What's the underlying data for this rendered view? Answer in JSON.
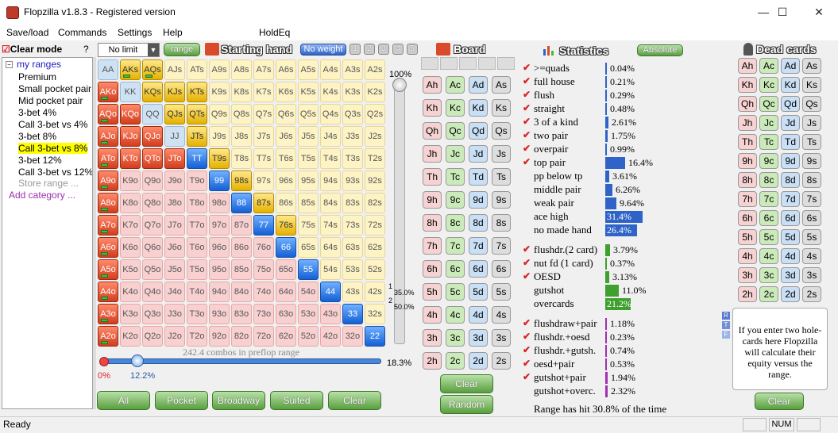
{
  "app": {
    "title": "Flopzilla v1.8.3 - Registered version",
    "min": "—",
    "max": "☐",
    "close": "✕"
  },
  "menu": [
    "Save/load",
    "Commands",
    "Settings",
    "Help",
    "HoldEq"
  ],
  "tree": {
    "clear_mode": "Clear mode",
    "help": "?",
    "root": "my ranges",
    "items": [
      "Premium",
      "Small pocket pair",
      "Mid pocket pair",
      "3-bet 4%",
      "Call 3-bet vs 4%",
      "3-bet 8%",
      "Call 3-bet vs 8%",
      "3-bet 12%",
      "Call 3-bet vs 12%"
    ],
    "selected_index": 6,
    "store": "Store range ...",
    "add": "Add category ..."
  },
  "range_bar": {
    "limit": "No limit",
    "range_btn": "range",
    "title": "Starting hand",
    "weight": "No weight",
    "nums": [
      "1",
      "2",
      "3",
      "4",
      "5"
    ]
  },
  "grid": {
    "ranks": [
      "A",
      "K",
      "Q",
      "J",
      "T",
      "9",
      "8",
      "7",
      "6",
      "5",
      "4",
      "3",
      "2"
    ],
    "selected": [
      "AKs",
      "AQs",
      "KQs",
      "KJs",
      "KTs",
      "QJs",
      "QTs",
      "JTs",
      "T9s",
      "98s",
      "87s",
      "76s",
      "AKo",
      "AQo",
      "KQo",
      "AJo",
      "KJo",
      "QJo",
      "ATo",
      "KTo",
      "QTo",
      "JTo",
      "A9o",
      "A8o",
      "A7o",
      "A6o",
      "A5o",
      "A4o",
      "A3o",
      "A2o",
      "TT",
      "99",
      "88",
      "77",
      "66",
      "55",
      "44",
      "33",
      "22"
    ],
    "marked": [
      "AKs",
      "AQs",
      "AKo",
      "AQo",
      "AJo",
      "ATo",
      "A9o",
      "A8o",
      "A7o",
      "A6o",
      "A5o",
      "A4o",
      "A3o",
      "A2o"
    ],
    "combos": "242.4 combos in preflop range"
  },
  "vslider": {
    "top": "100%",
    "l1": "1",
    "v1": "35.0%",
    "l2": "2",
    "v2": "50.0%",
    "fill": 1.0
  },
  "hslider": {
    "left": "0%",
    "mid": "12.2%",
    "right": "18.3%",
    "fill": 0.122
  },
  "bottom_buttons": [
    "All",
    "Pocket",
    "Broadway",
    "Suited",
    "Clear"
  ],
  "board": {
    "title": "Board",
    "ranks": [
      "A",
      "K",
      "Q",
      "J",
      "T",
      "9",
      "8",
      "7",
      "6",
      "5",
      "4",
      "3",
      "2"
    ],
    "suits": [
      "h",
      "c",
      "d",
      "s"
    ],
    "clear": "Clear",
    "random": "Random"
  },
  "stats": {
    "title": "Statistics",
    "absolute": "Absolute",
    "groups": [
      [
        {
          "l": "&gt;=quads",
          "v": "0.04%",
          "p": 0.04
        },
        {
          "l": "full house",
          "v": "0.21%",
          "p": 0.21
        },
        {
          "l": "flush",
          "v": "0.29%",
          "p": 0.29
        },
        {
          "l": "straight",
          "v": "0.48%",
          "p": 0.48
        },
        {
          "l": "3 of a kind",
          "v": "2.61%",
          "p": 2.61
        },
        {
          "l": "two pair",
          "v": "1.75%",
          "p": 1.75
        },
        {
          "l": "overpair",
          "v": "0.99%",
          "p": 0.99
        },
        {
          "l": "top pair",
          "v": "16.4%",
          "p": 16.4
        },
        {
          "l": "pp below tp",
          "v": "3.61%",
          "p": 3.61,
          "nc": 1
        },
        {
          "l": "middle pair",
          "v": "6.26%",
          "p": 6.26,
          "nc": 1
        },
        {
          "l": "weak pair",
          "v": "9.64%",
          "p": 9.64,
          "nc": 1
        },
        {
          "l": "ace high",
          "v": "31.4%",
          "p": 31.4,
          "nc": 1
        },
        {
          "l": "no made hand",
          "v": "26.4%",
          "p": 26.4,
          "nc": 1
        }
      ],
      [
        {
          "l": "flushdr.(2 card)",
          "v": "3.79%",
          "p": 3.79
        },
        {
          "l": "nut fd (1 card)",
          "v": "0.37%",
          "p": 0.37
        },
        {
          "l": "OESD",
          "v": "3.13%",
          "p": 3.13
        },
        {
          "l": "gutshot",
          "v": "11.0%",
          "p": 11.0,
          "nc": 1
        },
        {
          "l": "overcards",
          "v": "21.2%",
          "p": 21.2,
          "nc": 1
        }
      ],
      [
        {
          "l": "flushdraw+pair",
          "v": "1.18%",
          "p": 1.18
        },
        {
          "l": "flushdr.+oesd",
          "v": "0.23%",
          "p": 0.23
        },
        {
          "l": "flushdr.+gutsh.",
          "v": "0.74%",
          "p": 0.74
        },
        {
          "l": "oesd+pair",
          "v": "0.53%",
          "p": 0.53
        },
        {
          "l": "gutshot+pair",
          "v": "1.94%",
          "p": 1.94
        },
        {
          "l": "gutshot+overc.",
          "v": "2.32%",
          "p": 2.32,
          "nc": 1
        }
      ]
    ],
    "range_hit": "Range has hit 30.8% of the time"
  },
  "dead": {
    "title": "Dead cards",
    "clear": "Clear",
    "info": "If you enter two hole-cards here Flopzilla will calculate their equity versus the range.",
    "rtf": [
      "R",
      "T",
      "F"
    ]
  },
  "status": {
    "text": "Ready",
    "num": "NUM"
  },
  "colors": {
    "accent": "#2f63c7",
    "green": "#5a9e3f"
  }
}
